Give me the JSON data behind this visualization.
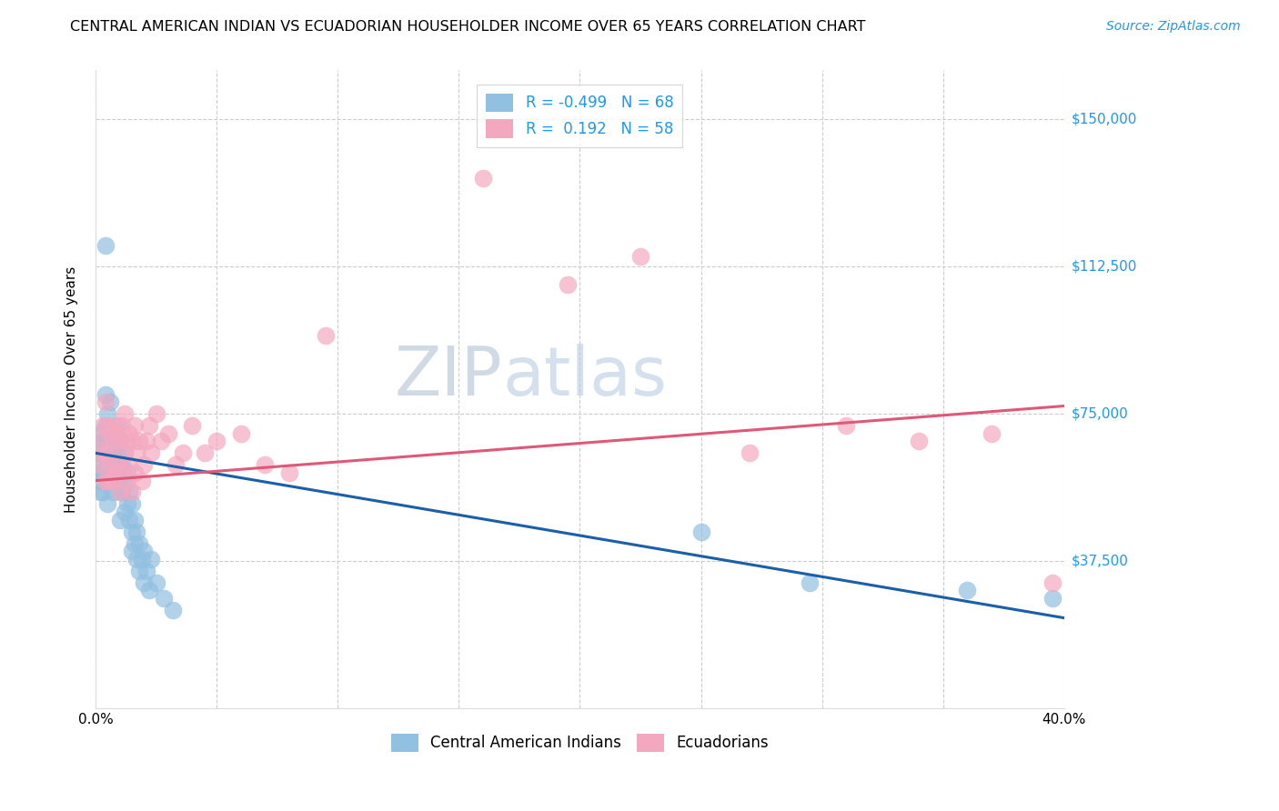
{
  "title": "CENTRAL AMERICAN INDIAN VS ECUADORIAN HOUSEHOLDER INCOME OVER 65 YEARS CORRELATION CHART",
  "source": "Source: ZipAtlas.com",
  "ylabel": "Householder Income Over 65 years",
  "y_ticks": [
    0,
    37500,
    75000,
    112500,
    150000
  ],
  "y_tick_labels": [
    "",
    "$37,500",
    "$75,000",
    "$112,500",
    "$150,000"
  ],
  "x_min": 0.0,
  "x_max": 0.4,
  "y_min": 0,
  "y_max": 162500,
  "legend_blue_r": "-0.499",
  "legend_blue_n": "68",
  "legend_pink_r": "0.192",
  "legend_pink_n": "58",
  "blue_color": "#92c0e0",
  "pink_color": "#f4a8c0",
  "blue_line_color": "#1a5fa8",
  "pink_line_color": "#e05878",
  "watermark_zip": "ZIP",
  "watermark_atlas": "atlas",
  "blue_line_x0": 0.0,
  "blue_line_y0": 65000,
  "blue_line_x1": 0.4,
  "blue_line_y1": 23000,
  "pink_line_x0": 0.0,
  "pink_line_y0": 58000,
  "pink_line_x1": 0.4,
  "pink_line_y1": 77000,
  "blue_points_x": [
    0.001,
    0.001,
    0.001,
    0.002,
    0.002,
    0.002,
    0.002,
    0.003,
    0.003,
    0.003,
    0.003,
    0.004,
    0.004,
    0.004,
    0.004,
    0.005,
    0.005,
    0.005,
    0.005,
    0.005,
    0.006,
    0.006,
    0.006,
    0.006,
    0.007,
    0.007,
    0.007,
    0.008,
    0.008,
    0.008,
    0.009,
    0.009,
    0.009,
    0.01,
    0.01,
    0.01,
    0.01,
    0.011,
    0.011,
    0.012,
    0.012,
    0.012,
    0.013,
    0.013,
    0.014,
    0.014,
    0.015,
    0.015,
    0.015,
    0.016,
    0.016,
    0.017,
    0.017,
    0.018,
    0.018,
    0.019,
    0.02,
    0.02,
    0.021,
    0.022,
    0.023,
    0.025,
    0.028,
    0.032,
    0.25,
    0.295,
    0.36,
    0.395
  ],
  "blue_points_y": [
    65000,
    62000,
    58000,
    70000,
    65000,
    60000,
    55000,
    68000,
    65000,
    60000,
    55000,
    118000,
    80000,
    72000,
    65000,
    75000,
    68000,
    62000,
    58000,
    52000,
    78000,
    70000,
    65000,
    58000,
    68000,
    62000,
    55000,
    70000,
    65000,
    58000,
    72000,
    65000,
    58000,
    68000,
    62000,
    55000,
    48000,
    62000,
    55000,
    65000,
    58000,
    50000,
    60000,
    52000,
    55000,
    48000,
    52000,
    45000,
    40000,
    48000,
    42000,
    45000,
    38000,
    42000,
    35000,
    38000,
    40000,
    32000,
    35000,
    30000,
    38000,
    32000,
    28000,
    25000,
    45000,
    32000,
    30000,
    28000
  ],
  "pink_points_x": [
    0.002,
    0.002,
    0.003,
    0.003,
    0.004,
    0.004,
    0.005,
    0.005,
    0.005,
    0.006,
    0.006,
    0.007,
    0.007,
    0.008,
    0.008,
    0.009,
    0.009,
    0.01,
    0.01,
    0.011,
    0.011,
    0.012,
    0.012,
    0.013,
    0.013,
    0.014,
    0.014,
    0.015,
    0.015,
    0.016,
    0.016,
    0.017,
    0.018,
    0.019,
    0.02,
    0.021,
    0.022,
    0.023,
    0.025,
    0.027,
    0.03,
    0.033,
    0.036,
    0.04,
    0.045,
    0.05,
    0.06,
    0.07,
    0.08,
    0.095,
    0.16,
    0.195,
    0.225,
    0.27,
    0.31,
    0.34,
    0.37,
    0.395
  ],
  "pink_points_y": [
    68000,
    62000,
    72000,
    65000,
    78000,
    58000,
    72000,
    65000,
    58000,
    70000,
    62000,
    68000,
    58000,
    72000,
    60000,
    70000,
    62000,
    68000,
    55000,
    72000,
    60000,
    75000,
    65000,
    68000,
    58000,
    70000,
    62000,
    68000,
    55000,
    72000,
    60000,
    65000,
    68000,
    58000,
    62000,
    68000,
    72000,
    65000,
    75000,
    68000,
    70000,
    62000,
    65000,
    72000,
    65000,
    68000,
    70000,
    62000,
    60000,
    95000,
    135000,
    108000,
    115000,
    65000,
    72000,
    68000,
    70000,
    32000
  ]
}
